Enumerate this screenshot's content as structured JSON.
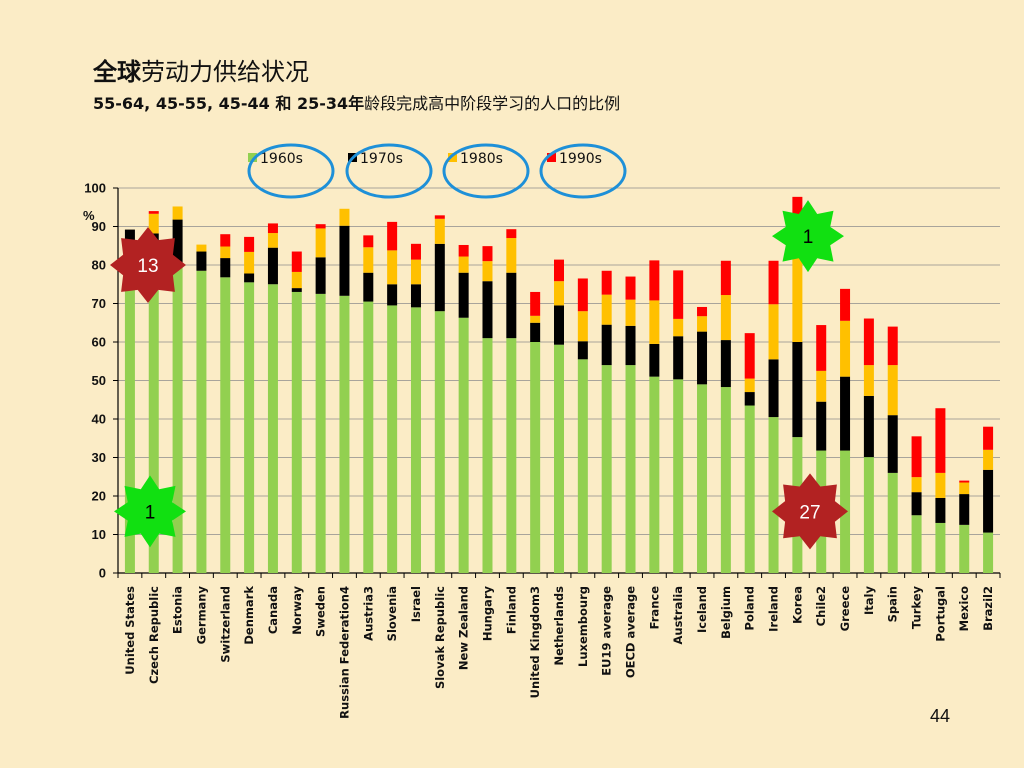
{
  "title": {
    "line1_bold": "全球",
    "line1_rest": "劳动力供给状况",
    "line2_bold": "55-64, 45-55, 45-44 和 25-34年",
    "line2_rest": "龄段完成高中阶段学习的人口的比例"
  },
  "page_number": "44",
  "colors": {
    "background": "#fbecc6",
    "s1960": "#92d050",
    "s1970": "#000000",
    "s1980": "#ffc000",
    "s1990": "#ff0000",
    "circle": "#1e90d8",
    "star_green": "#11e011",
    "star_red": "#b22222"
  },
  "chart_data": {
    "type": "bar",
    "subtype": "stacked-cumulative",
    "ylabel": "%",
    "ylim": [
      0,
      100
    ],
    "yticks": [
      0,
      10,
      20,
      30,
      40,
      50,
      60,
      70,
      80,
      90,
      100
    ],
    "grid": true,
    "legend_position": "top",
    "categories": [
      "United States",
      "Czech Republic",
      "Estonia",
      "Germany",
      "Switzerland",
      "Denmark",
      "Canada",
      "Norway",
      "Sweden",
      "Russian Federation4",
      "Austria3",
      "Slovenia",
      "Israel",
      "Slovak Republic",
      "New Zealand",
      "Hungary",
      "Finland",
      "United Kingdom3",
      "Netherlands",
      "Luxembourg",
      "EU19 average",
      "OECD average",
      "France",
      "Australia",
      "Iceland",
      "Belgium",
      "Poland",
      "Ireland",
      "Korea",
      "Chile2",
      "Greece",
      "Italy",
      "Spain",
      "Turkey",
      "Portugal",
      "Mexico",
      "Brazil2"
    ],
    "series": [
      {
        "name": "1960s",
        "color": "#92d050",
        "values": [
          86.5,
          80,
          80.5,
          78.5,
          76.8,
          75.5,
          75,
          73,
          72.5,
          72,
          70.5,
          69.5,
          69,
          68,
          66.3,
          61,
          61,
          60,
          59.3,
          55.5,
          54,
          54,
          51,
          50.3,
          49,
          48.3,
          43.5,
          40.5,
          35.3,
          31.8,
          31.8,
          30.1,
          26,
          15,
          13,
          12.5,
          10.5
        ]
      },
      {
        "name": "1970s",
        "color": "#000000",
        "values": [
          89.2,
          88.2,
          91.8,
          83.5,
          81.8,
          77.8,
          84.5,
          74,
          82,
          90.2,
          78,
          75,
          75,
          85.5,
          78,
          75.8,
          78,
          65,
          69.5,
          60.2,
          64.5,
          64.2,
          59.5,
          61.5,
          62.7,
          60.5,
          47,
          55.5,
          60,
          44.5,
          51,
          46,
          41,
          21,
          19.5,
          20.5,
          26.8
        ]
      },
      {
        "name": "1980s",
        "color": "#ffc000",
        "values": [
          89.2,
          93.3,
          95.2,
          85.3,
          84.8,
          83.4,
          88.3,
          78.2,
          89.5,
          94.6,
          84.6,
          83.8,
          81.4,
          92,
          82.2,
          81,
          87,
          66.8,
          75.8,
          68,
          72.3,
          71,
          70.8,
          66,
          66.7,
          72.2,
          50.5,
          69.8,
          85.6,
          52.5,
          65.5,
          54,
          54,
          24.9,
          26,
          23.5,
          32
        ]
      },
      {
        "name": "1990s",
        "color": "#ff0000",
        "values": [
          89.2,
          94,
          95.2,
          85.3,
          88,
          87.3,
          90.8,
          83.5,
          90.6,
          94.6,
          87.7,
          91.2,
          85.5,
          92.9,
          85.2,
          84.9,
          89.3,
          73,
          81.4,
          76.5,
          78.5,
          77,
          81.2,
          78.6,
          69.1,
          81.1,
          62.3,
          81.1,
          97.7,
          64.4,
          73.8,
          66.1,
          64,
          35.5,
          42.8,
          24,
          38
        ]
      }
    ],
    "annotations": [
      {
        "label": "1",
        "shape": "star",
        "color": "green",
        "near": "Korea",
        "value": 87.5
      },
      {
        "label": "13",
        "shape": "star",
        "color": "red",
        "near": "United States",
        "value": 80
      },
      {
        "label": "1",
        "shape": "star",
        "color": "green",
        "near": "Czech Republic",
        "value": 16
      },
      {
        "label": "27",
        "shape": "star",
        "color": "red",
        "near": "Chile2",
        "value": 16
      }
    ]
  }
}
